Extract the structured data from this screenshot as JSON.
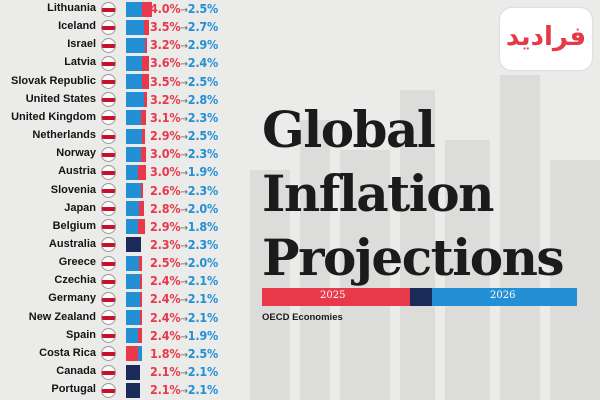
{
  "chart_data": {
    "type": "bar",
    "title": "Global Inflation Projections",
    "title_lines": [
      "Global",
      "Inflation",
      "Projections"
    ],
    "subtitle": "OECD Economies",
    "legend": [
      {
        "name": "2025",
        "color": "#e8394b"
      },
      {
        "name": "2026",
        "color": "#2390d6"
      }
    ],
    "arrow": "→",
    "categories": [
      "Lithuania",
      "Iceland",
      "Israel",
      "Latvia",
      "Slovak Republic",
      "United States",
      "United Kingdom",
      "Netherlands",
      "Norway",
      "Austria",
      "Slovenia",
      "Japan",
      "Belgium",
      "Australia",
      "Greece",
      "Czechia",
      "Germany",
      "New Zealand",
      "Spain",
      "Costa Rica",
      "Canada",
      "Portugal"
    ],
    "series": [
      {
        "name": "2025",
        "values": [
          4.0,
          3.5,
          3.2,
          3.6,
          3.5,
          3.2,
          3.1,
          2.9,
          3.0,
          3.0,
          2.6,
          2.8,
          2.9,
          2.3,
          2.5,
          2.4,
          2.4,
          2.4,
          2.4,
          1.8,
          2.1,
          2.1
        ]
      },
      {
        "name": "2026",
        "values": [
          2.5,
          2.7,
          2.9,
          2.4,
          2.5,
          2.8,
          2.3,
          2.5,
          2.3,
          1.9,
          2.3,
          2.0,
          1.8,
          2.3,
          2.0,
          2.1,
          2.1,
          2.1,
          1.9,
          2.5,
          2.1,
          2.1
        ]
      }
    ],
    "labels_2025": [
      "4.0%",
      "3.5%",
      "3.2%",
      "3.6%",
      "3.5%",
      "3.2%",
      "3.1%",
      "2.9%",
      "3.0%",
      "3.0%",
      "2.6%",
      "2.8%",
      "2.9%",
      "2.3%",
      "2.5%",
      "2.4%",
      "2.4%",
      "2.4%",
      "2.4%",
      "1.8%",
      "2.1%",
      "2.1%"
    ],
    "labels_2026": [
      "2.5%",
      "2.7%",
      "2.9%",
      "2.4%",
      "2.5%",
      "2.8%",
      "2.3%",
      "2.5%",
      "2.3%",
      "1.9%",
      "2.3%",
      "2.0%",
      "1.8%",
      "2.3%",
      "2.0%",
      "2.1%",
      "2.1%",
      "2.1%",
      "1.9%",
      "2.5%",
      "2.1%",
      "2.1%"
    ],
    "equal_color": "#1a2a5a"
  },
  "flags": [
    "lithuania-flag-icon",
    "iceland-flag-icon",
    "israel-flag-icon",
    "latvia-flag-icon",
    "slovakia-flag-icon",
    "usa-flag-icon",
    "uk-flag-icon",
    "netherlands-flag-icon",
    "norway-flag-icon",
    "austria-flag-icon",
    "slovenia-flag-icon",
    "japan-flag-icon",
    "belgium-flag-icon",
    "australia-flag-icon",
    "greece-flag-icon",
    "czechia-flag-icon",
    "germany-flag-icon",
    "new-zealand-flag-icon",
    "spain-flag-icon",
    "costa-rica-flag-icon",
    "canada-flag-icon",
    "portugal-flag-icon"
  ],
  "logo": {
    "text": "فرادید",
    "color": "#e53946"
  }
}
